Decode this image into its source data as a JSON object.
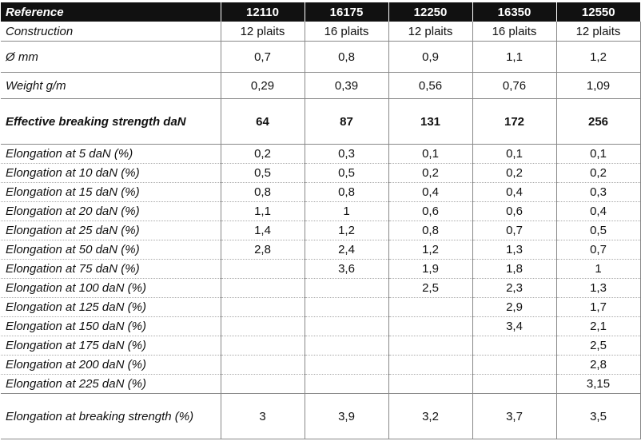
{
  "header": {
    "label": "Reference",
    "refs": [
      "12110",
      "16175",
      "12250",
      "16350",
      "12550"
    ]
  },
  "construction": {
    "label": "Construction",
    "values": [
      "12 plaits",
      "16 plaits",
      "12 plaits",
      "16 plaits",
      "12 plaits"
    ]
  },
  "diameter": {
    "label": "Ø mm",
    "values": [
      "0,7",
      "0,8",
      "0,9",
      "1,1",
      "1,2"
    ]
  },
  "weight": {
    "label": "Weight g/m",
    "values": [
      "0,29",
      "0,39",
      "0,56",
      "0,76",
      "1,09"
    ]
  },
  "breaking": {
    "label": "Effective breaking strength daN",
    "values": [
      "64",
      "87",
      "131",
      "172",
      "256"
    ]
  },
  "elongation": [
    {
      "label": "Elongation at 5 daN (%)",
      "values": [
        "0,2",
        "0,3",
        "0,1",
        "0,1",
        "0,1"
      ]
    },
    {
      "label": "Elongation at 10 daN (%)",
      "values": [
        "0,5",
        "0,5",
        "0,2",
        "0,2",
        "0,2"
      ]
    },
    {
      "label": "Elongation at 15 daN (%)",
      "values": [
        "0,8",
        "0,8",
        "0,4",
        "0,4",
        "0,3"
      ]
    },
    {
      "label": "Elongation at 20 daN (%)",
      "values": [
        "1,1",
        "1",
        "0,6",
        "0,6",
        "0,4"
      ]
    },
    {
      "label": "Elongation at 25 daN (%)",
      "values": [
        "1,4",
        "1,2",
        "0,8",
        "0,7",
        "0,5"
      ]
    },
    {
      "label": "Elongation at 50 daN (%)",
      "values": [
        "2,8",
        "2,4",
        "1,2",
        "1,3",
        "0,7"
      ]
    },
    {
      "label": "Elongation at 75 daN (%)",
      "values": [
        "",
        "3,6",
        "1,9",
        "1,8",
        "1"
      ]
    },
    {
      "label": "Elongation at 100 daN (%)",
      "values": [
        "",
        "",
        "2,5",
        "2,3",
        "1,3"
      ]
    },
    {
      "label": "Elongation at 125 daN (%)",
      "values": [
        "",
        "",
        "",
        "2,9",
        "1,7"
      ]
    },
    {
      "label": "Elongation at 150 daN (%)",
      "values": [
        "",
        "",
        "",
        "3,4",
        "2,1"
      ]
    },
    {
      "label": "Elongation at 175 daN (%)",
      "values": [
        "",
        "",
        "",
        "",
        "2,5"
      ]
    },
    {
      "label": "Elongation at 200 daN (%)",
      "values": [
        "",
        "",
        "",
        "",
        "2,8"
      ]
    },
    {
      "label": "Elongation at 225 daN (%)",
      "values": [
        "",
        "",
        "",
        "",
        "3,15"
      ]
    }
  ],
  "final": {
    "label": "Elongation at breaking strength (%)",
    "values": [
      "3",
      "3,9",
      "3,2",
      "3,7",
      "3,5"
    ]
  }
}
